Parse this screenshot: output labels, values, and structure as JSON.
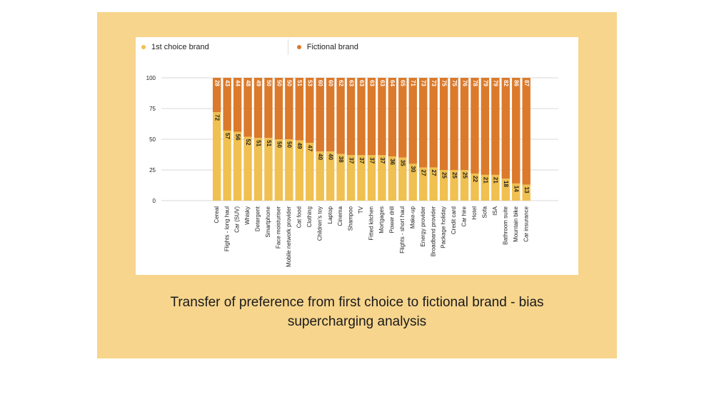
{
  "colors": {
    "frame": "#f7d58d",
    "first_choice": "#f0c050",
    "fictional": "#db7a2b",
    "grid": "#cccccc",
    "text": "#222222"
  },
  "caption": {
    "line1": "Transfer of preference from first choice to fictional brand - bias",
    "line2": "supercharging analysis"
  },
  "chart_data": {
    "type": "bar",
    "stacked": true,
    "title": "",
    "xlabel": "",
    "ylabel": "",
    "ylim": [
      0,
      100
    ],
    "yticks": [
      0,
      25,
      50,
      75,
      100
    ],
    "legend_position": "top-left",
    "categories": [
      "Cereal",
      "Flights - long haul",
      "Car (SUV)",
      "Whisky",
      "Detergent",
      "Smartphone",
      "Face moisturiser",
      "Mobile network provider",
      "Cat food",
      "Clothing",
      "Children's toy",
      "Laptop",
      "Cinema",
      "Shampoo",
      "TV",
      "Fitted kitchen",
      "Mortgages",
      "Power drill",
      "Flights - short haul",
      "Make-up",
      "Energy provider",
      "Broadband provider",
      "Package holiday",
      "Credit card",
      "Car hire",
      "Hotel",
      "Sofa",
      "ISA",
      "Bathroom suite",
      "Mountain bike",
      "Car insurance"
    ],
    "series": [
      {
        "name": "1st choice brand",
        "values": [
          72,
          57,
          56,
          52,
          51,
          51,
          50,
          50,
          49,
          47,
          40,
          40,
          38,
          37,
          37,
          37,
          37,
          36,
          35,
          30,
          27,
          27,
          25,
          25,
          25,
          22,
          21,
          21,
          18,
          14,
          13
        ]
      },
      {
        "name": "Fictional brand",
        "values": [
          28,
          43,
          44,
          48,
          49,
          50,
          50,
          50,
          51,
          53,
          60,
          60,
          62,
          63,
          63,
          63,
          63,
          64,
          65,
          71,
          73,
          73,
          75,
          75,
          76,
          78,
          79,
          79,
          82,
          86,
          87
        ]
      }
    ]
  }
}
